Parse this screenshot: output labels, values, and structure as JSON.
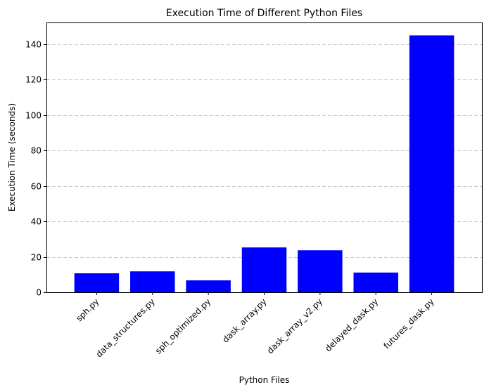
{
  "chart_data": {
    "type": "bar",
    "title": "Execution Time of Different Python Files",
    "xlabel": "Python Files",
    "ylabel": "Execution Time (seconds)",
    "categories": [
      "sph.py",
      "data_structures.py",
      "sph_optimized.py",
      "dask_array.py",
      "dask_array_v2.py",
      "delayed_dask.py",
      "futures_dask.py"
    ],
    "values": [
      10.7,
      11.8,
      6.7,
      25.3,
      23.7,
      11.1,
      145.0
    ],
    "ylim": [
      0,
      152.3
    ],
    "yticks": [
      0,
      20,
      40,
      60,
      80,
      100,
      120,
      140
    ],
    "grid": "y dashed",
    "bar_color": "#0000ff",
    "grid_color": "#c8c8c8",
    "xtick_rotation_deg": 45
  }
}
